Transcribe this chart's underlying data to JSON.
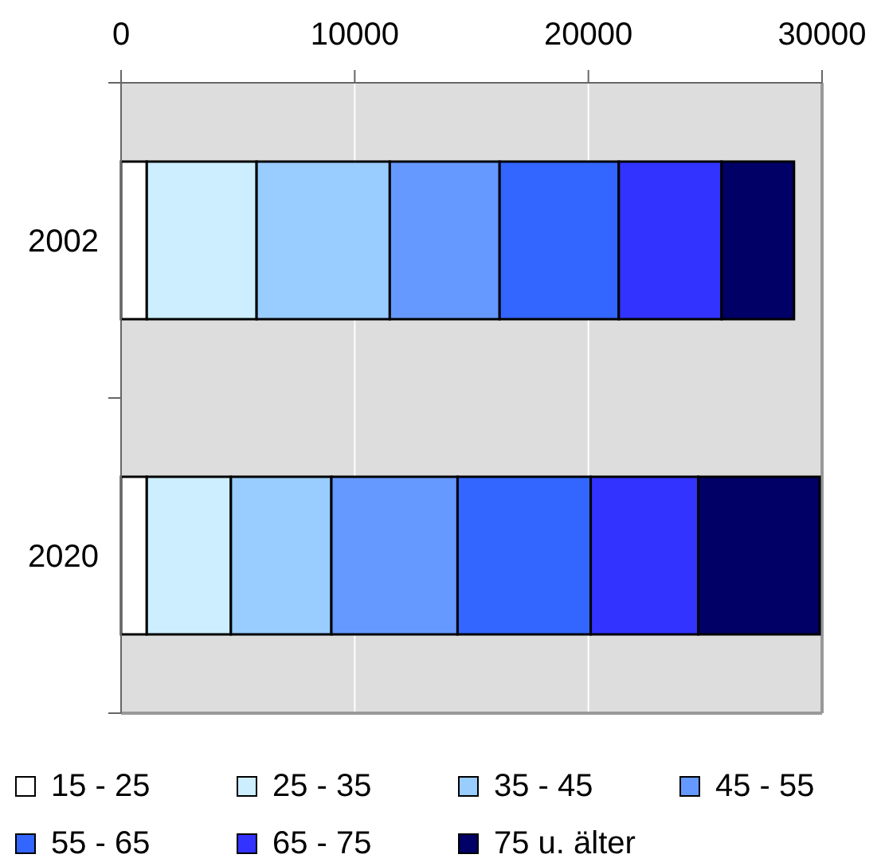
{
  "chart_data": {
    "type": "bar",
    "orientation": "horizontal",
    "stacked": true,
    "categories": [
      "2002",
      "2020"
    ],
    "series": [
      {
        "name": "15 - 25",
        "color": "#ffffff",
        "values": [
          1100,
          1100
        ]
      },
      {
        "name": "25 - 35",
        "color": "#cceeff",
        "values": [
          4700,
          3600
        ]
      },
      {
        "name": "35 - 45",
        "color": "#99ccff",
        "values": [
          5700,
          4300
        ]
      },
      {
        "name": "45 - 55",
        "color": "#6699ff",
        "values": [
          4700,
          5400
        ]
      },
      {
        "name": "55 - 65",
        "color": "#3366ff",
        "values": [
          5100,
          5700
        ]
      },
      {
        "name": "65 - 75",
        "color": "#3333ff",
        "values": [
          4400,
          4600
        ]
      },
      {
        "name": "75 u. älter",
        "color": "#000066",
        "values": [
          3100,
          5200
        ]
      }
    ],
    "xlim": [
      0,
      30000
    ],
    "xticks": [
      0,
      10000,
      20000,
      30000
    ],
    "grid": "x",
    "legend": "bottom"
  }
}
